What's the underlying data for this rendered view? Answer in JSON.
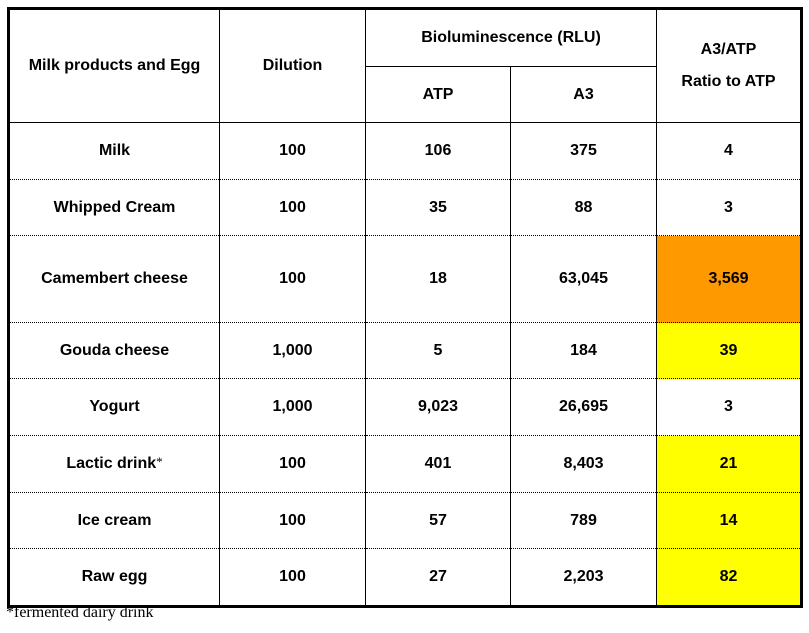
{
  "header": {
    "col_product": "Milk products and Egg",
    "col_dilution": "Dilution",
    "col_biolum": "Bioluminescence (RLU)",
    "col_atp": "ATP",
    "col_a3": "A3",
    "col_ratio_line1": "A3/ATP",
    "col_ratio_line2": "Ratio to ATP"
  },
  "rows": [
    {
      "product": "Milk",
      "dilution": "100",
      "atp": "106",
      "a3": "375",
      "ratio": "4",
      "highlight": "none"
    },
    {
      "product": "Whipped Cream",
      "dilution": "100",
      "atp": "35",
      "a3": "88",
      "ratio": "3",
      "highlight": "none"
    },
    {
      "product": "Camembert cheese",
      "dilution": "100",
      "atp": "18",
      "a3": "63,045",
      "ratio": "3,569",
      "highlight": "#FF9900"
    },
    {
      "product": "Gouda cheese",
      "dilution": "1,000",
      "atp": "5",
      "a3": "184",
      "ratio": "39",
      "highlight": "#FFFF00"
    },
    {
      "product": "Yogurt",
      "dilution": "1,000",
      "atp": "9,023",
      "a3": "26,695",
      "ratio": "3",
      "highlight": "none"
    },
    {
      "product": "Lactic drink",
      "product_mark": "*",
      "dilution": "100",
      "atp": "401",
      "a3": "8,403",
      "ratio": "21",
      "highlight": "#FFFF00"
    },
    {
      "product": "Ice cream",
      "dilution": "100",
      "atp": "57",
      "a3": "789",
      "ratio": "14",
      "highlight": "#FFFF00"
    },
    {
      "product": "Raw egg",
      "dilution": "100",
      "atp": "27",
      "a3": "2,203",
      "ratio": "82",
      "highlight": "#FFFF00"
    }
  ],
  "footnote": "*fermented dairy drink"
}
